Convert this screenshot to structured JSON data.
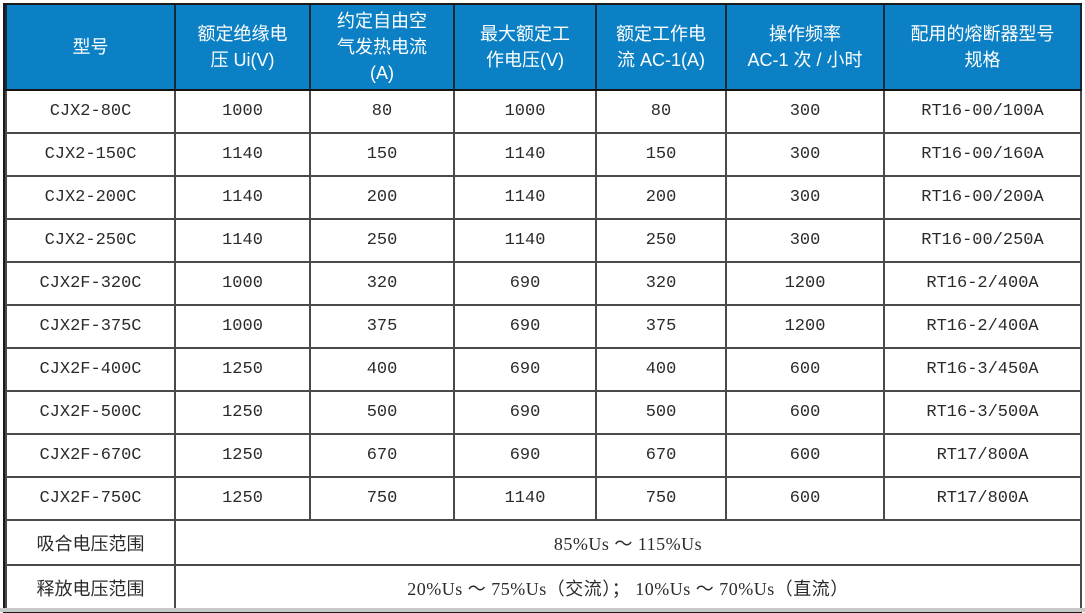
{
  "table": {
    "columns": [
      {
        "label": "型号"
      },
      {
        "label": "额定绝缘电\n压 Ui(V)"
      },
      {
        "label": "约定自由空\n气发热电流\n(A)"
      },
      {
        "label": "最大额定工\n作电压(V)"
      },
      {
        "label": "额定工作电\n流 AC-1(A)"
      },
      {
        "label": "操作频率\nAC-1 次 / 小时"
      },
      {
        "label": "配用的熔断器型号\n规格"
      }
    ],
    "rows": [
      [
        "CJX2-80C",
        "1000",
        "80",
        "1000",
        "80",
        "300",
        "RT16-00/100A"
      ],
      [
        "CJX2-150C",
        "1140",
        "150",
        "1140",
        "150",
        "300",
        "RT16-00/160A"
      ],
      [
        "CJX2-200C",
        "1140",
        "200",
        "1140",
        "200",
        "300",
        "RT16-00/200A"
      ],
      [
        "CJX2-250C",
        "1140",
        "250",
        "1140",
        "250",
        "300",
        "RT16-00/250A"
      ],
      [
        "CJX2F-320C",
        "1000",
        "320",
        "690",
        "320",
        "1200",
        "RT16-2/400A"
      ],
      [
        "CJX2F-375C",
        "1000",
        "375",
        "690",
        "375",
        "1200",
        "RT16-2/400A"
      ],
      [
        "CJX2F-400C",
        "1250",
        "400",
        "690",
        "400",
        "600",
        "RT16-3/450A"
      ],
      [
        "CJX2F-500C",
        "1250",
        "500",
        "690",
        "500",
        "600",
        "RT16-3/500A"
      ],
      [
        "CJX2F-670C",
        "1250",
        "670",
        "690",
        "670",
        "600",
        "RT17/800A"
      ],
      [
        "CJX2F-750C",
        "1250",
        "750",
        "1140",
        "750",
        "600",
        "RT17/800A"
      ]
    ],
    "footer_rows": [
      {
        "label": "吸合电压范围",
        "value": "85%Us ～ 115%Us"
      },
      {
        "label": "释放电压范围",
        "value": "20%Us ～ 75%Us（交流）； 10%Us ～ 70%Us（直流）"
      }
    ],
    "colors": {
      "header_bg": "#0c80c4",
      "header_text": "#ffffff",
      "grid": "#4a4a4a",
      "outer_border": "#1a1a1a",
      "body_text": "#2b2b2b"
    }
  }
}
